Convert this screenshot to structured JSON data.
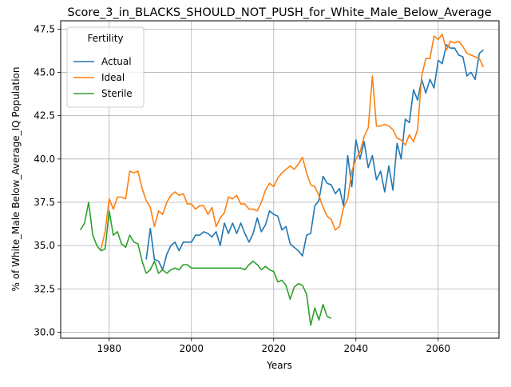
{
  "chart_data": {
    "type": "line",
    "title": "Score_3_in_BLACKS_SHOULD_NOT_PUSH_for_White_Male_Below_Average",
    "xlabel": "Years",
    "ylabel": "% of White_Male Below_Average_IQ Population",
    "xlim": [
      1968.2,
      2074.8
    ],
    "ylim": [
      29.65,
      47.98
    ],
    "xticks": [
      1980,
      2000,
      2020,
      2040,
      2060
    ],
    "yticks": [
      30.0,
      32.5,
      35.0,
      37.5,
      40.0,
      42.5,
      45.0,
      47.5
    ],
    "grid": true,
    "legend": {
      "title": "Fertility",
      "position": "upper-left"
    },
    "series": [
      {
        "name": "Actual",
        "color": "#1f77b4",
        "points": [
          [
            1989,
            34.2
          ],
          [
            1990,
            36.0
          ],
          [
            1991,
            34.2
          ],
          [
            1992,
            34.1
          ],
          [
            1993,
            33.6
          ],
          [
            1994,
            34.5
          ],
          [
            1995,
            35.0
          ],
          [
            1996,
            35.2
          ],
          [
            1997,
            34.7
          ],
          [
            1998,
            35.2
          ],
          [
            1999,
            35.2
          ],
          [
            2000,
            35.2
          ],
          [
            2001,
            35.6
          ],
          [
            2002,
            35.6
          ],
          [
            2003,
            35.8
          ],
          [
            2004,
            35.7
          ],
          [
            2005,
            35.5
          ],
          [
            2006,
            35.8
          ],
          [
            2007,
            35.0
          ],
          [
            2008,
            36.3
          ],
          [
            2009,
            35.7
          ],
          [
            2010,
            36.3
          ],
          [
            2011,
            35.7
          ],
          [
            2012,
            36.3
          ],
          [
            2013,
            35.7
          ],
          [
            2014,
            35.2
          ],
          [
            2015,
            35.7
          ],
          [
            2016,
            36.6
          ],
          [
            2017,
            35.8
          ],
          [
            2018,
            36.2
          ],
          [
            2019,
            37.0
          ],
          [
            2020,
            36.8
          ],
          [
            2021,
            36.7
          ],
          [
            2022,
            35.9
          ],
          [
            2023,
            36.1
          ],
          [
            2024,
            35.1
          ],
          [
            2025,
            34.9
          ],
          [
            2026,
            34.7
          ],
          [
            2027,
            34.4
          ],
          [
            2028,
            35.6
          ],
          [
            2029,
            35.7
          ],
          [
            2030,
            37.3
          ],
          [
            2031,
            37.6
          ],
          [
            2032,
            39.0
          ],
          [
            2033,
            38.6
          ],
          [
            2034,
            38.5
          ],
          [
            2035,
            38.0
          ],
          [
            2036,
            38.3
          ],
          [
            2037,
            37.3
          ],
          [
            2038,
            40.2
          ],
          [
            2039,
            38.4
          ],
          [
            2040,
            41.1
          ],
          [
            2041,
            40.0
          ],
          [
            2042,
            41.0
          ],
          [
            2043,
            39.5
          ],
          [
            2044,
            40.2
          ],
          [
            2045,
            38.8
          ],
          [
            2046,
            39.3
          ],
          [
            2047,
            38.1
          ],
          [
            2048,
            39.6
          ],
          [
            2049,
            38.2
          ],
          [
            2050,
            40.9
          ],
          [
            2051,
            40.0
          ],
          [
            2052,
            42.3
          ],
          [
            2053,
            42.1
          ],
          [
            2054,
            44.0
          ],
          [
            2055,
            43.4
          ],
          [
            2056,
            44.6
          ],
          [
            2057,
            43.8
          ],
          [
            2058,
            44.6
          ],
          [
            2059,
            44.1
          ],
          [
            2060,
            45.7
          ],
          [
            2061,
            45.5
          ],
          [
            2062,
            46.6
          ],
          [
            2063,
            46.4
          ],
          [
            2064,
            46.4
          ],
          [
            2065,
            46.0
          ],
          [
            2066,
            45.9
          ],
          [
            2067,
            44.8
          ],
          [
            2068,
            45.0
          ],
          [
            2069,
            44.6
          ],
          [
            2070,
            46.1
          ],
          [
            2071,
            46.3
          ]
        ]
      },
      {
        "name": "Ideal",
        "color": "#ff7f0e",
        "points": [
          [
            1978,
            34.8
          ],
          [
            1979,
            35.8
          ],
          [
            1980,
            37.7
          ],
          [
            1981,
            37.1
          ],
          [
            1982,
            37.8
          ],
          [
            1983,
            37.8
          ],
          [
            1984,
            37.7
          ],
          [
            1985,
            39.3
          ],
          [
            1986,
            39.2
          ],
          [
            1987,
            39.3
          ],
          [
            1988,
            38.3
          ],
          [
            1989,
            37.6
          ],
          [
            1990,
            37.2
          ],
          [
            1991,
            36.1
          ],
          [
            1992,
            37.0
          ],
          [
            1993,
            36.8
          ],
          [
            1994,
            37.5
          ],
          [
            1995,
            37.9
          ],
          [
            1996,
            38.1
          ],
          [
            1997,
            37.9
          ],
          [
            1998,
            38.0
          ],
          [
            1999,
            37.4
          ],
          [
            2000,
            37.4
          ],
          [
            2001,
            37.1
          ],
          [
            2002,
            37.3
          ],
          [
            2003,
            37.3
          ],
          [
            2004,
            36.8
          ],
          [
            2005,
            37.2
          ],
          [
            2006,
            36.1
          ],
          [
            2007,
            36.6
          ],
          [
            2008,
            36.9
          ],
          [
            2009,
            37.8
          ],
          [
            2010,
            37.7
          ],
          [
            2011,
            37.9
          ],
          [
            2012,
            37.4
          ],
          [
            2013,
            37.4
          ],
          [
            2014,
            37.1
          ],
          [
            2015,
            37.1
          ],
          [
            2016,
            37.0
          ],
          [
            2017,
            37.5
          ],
          [
            2018,
            38.2
          ],
          [
            2019,
            38.6
          ],
          [
            2020,
            38.4
          ],
          [
            2021,
            38.9
          ],
          [
            2022,
            39.2
          ],
          [
            2023,
            39.4
          ],
          [
            2024,
            39.6
          ],
          [
            2025,
            39.4
          ],
          [
            2026,
            39.7
          ],
          [
            2027,
            40.1
          ],
          [
            2028,
            39.2
          ],
          [
            2029,
            38.5
          ],
          [
            2030,
            38.4
          ],
          [
            2031,
            37.9
          ],
          [
            2032,
            37.2
          ],
          [
            2033,
            36.7
          ],
          [
            2034,
            36.5
          ],
          [
            2035,
            35.9
          ],
          [
            2036,
            36.1
          ],
          [
            2037,
            37.2
          ],
          [
            2038,
            37.7
          ],
          [
            2039,
            39.3
          ],
          [
            2040,
            40.0
          ],
          [
            2041,
            40.4
          ],
          [
            2042,
            41.3
          ],
          [
            2043,
            41.8
          ],
          [
            2044,
            44.8
          ],
          [
            2045,
            41.9
          ],
          [
            2046,
            41.9
          ],
          [
            2047,
            42.0
          ],
          [
            2048,
            41.9
          ],
          [
            2049,
            41.7
          ],
          [
            2050,
            41.2
          ],
          [
            2051,
            41.1
          ],
          [
            2052,
            40.8
          ],
          [
            2053,
            41.4
          ],
          [
            2054,
            41.0
          ],
          [
            2055,
            41.7
          ],
          [
            2056,
            44.8
          ],
          [
            2057,
            45.8
          ],
          [
            2058,
            45.8
          ],
          [
            2059,
            47.1
          ],
          [
            2060,
            46.9
          ],
          [
            2061,
            47.2
          ],
          [
            2062,
            46.3
          ],
          [
            2063,
            46.8
          ],
          [
            2064,
            46.7
          ],
          [
            2065,
            46.8
          ],
          [
            2066,
            46.5
          ],
          [
            2067,
            46.1
          ],
          [
            2068,
            46.0
          ],
          [
            2069,
            45.9
          ],
          [
            2070,
            45.8
          ],
          [
            2071,
            45.3
          ]
        ]
      },
      {
        "name": "Sterile",
        "color": "#2ca02c",
        "points": [
          [
            1973,
            35.9
          ],
          [
            1974,
            36.3
          ],
          [
            1975,
            37.5
          ],
          [
            1976,
            35.6
          ],
          [
            1977,
            35.0
          ],
          [
            1978,
            34.7
          ],
          [
            1979,
            34.8
          ],
          [
            1980,
            37.0
          ],
          [
            1981,
            35.6
          ],
          [
            1982,
            35.8
          ],
          [
            1983,
            35.1
          ],
          [
            1984,
            34.9
          ],
          [
            1985,
            35.6
          ],
          [
            1986,
            35.2
          ],
          [
            1987,
            35.1
          ],
          [
            1988,
            34.1
          ],
          [
            1989,
            33.4
          ],
          [
            1990,
            33.6
          ],
          [
            1991,
            34.1
          ],
          [
            1992,
            33.4
          ],
          [
            1993,
            33.6
          ],
          [
            1994,
            33.4
          ],
          [
            1995,
            33.6
          ],
          [
            1996,
            33.7
          ],
          [
            1997,
            33.6
          ],
          [
            1998,
            33.9
          ],
          [
            1999,
            33.9
          ],
          [
            2000,
            33.7
          ],
          [
            2001,
            33.7
          ],
          [
            2002,
            33.7
          ],
          [
            2003,
            33.7
          ],
          [
            2004,
            33.7
          ],
          [
            2005,
            33.7
          ],
          [
            2006,
            33.7
          ],
          [
            2007,
            33.7
          ],
          [
            2008,
            33.7
          ],
          [
            2009,
            33.7
          ],
          [
            2010,
            33.7
          ],
          [
            2011,
            33.7
          ],
          [
            2012,
            33.7
          ],
          [
            2013,
            33.6
          ],
          [
            2014,
            33.9
          ],
          [
            2015,
            34.1
          ],
          [
            2016,
            33.9
          ],
          [
            2017,
            33.6
          ],
          [
            2018,
            33.8
          ],
          [
            2019,
            33.6
          ],
          [
            2020,
            33.5
          ],
          [
            2021,
            32.9
          ],
          [
            2022,
            33.0
          ],
          [
            2023,
            32.7
          ],
          [
            2024,
            31.9
          ],
          [
            2025,
            32.6
          ],
          [
            2026,
            32.8
          ],
          [
            2027,
            32.7
          ],
          [
            2028,
            32.2
          ],
          [
            2029,
            30.4
          ],
          [
            2030,
            31.4
          ],
          [
            2031,
            30.7
          ],
          [
            2032,
            31.6
          ],
          [
            2033,
            30.9
          ],
          [
            2034,
            30.8
          ]
        ]
      }
    ]
  }
}
